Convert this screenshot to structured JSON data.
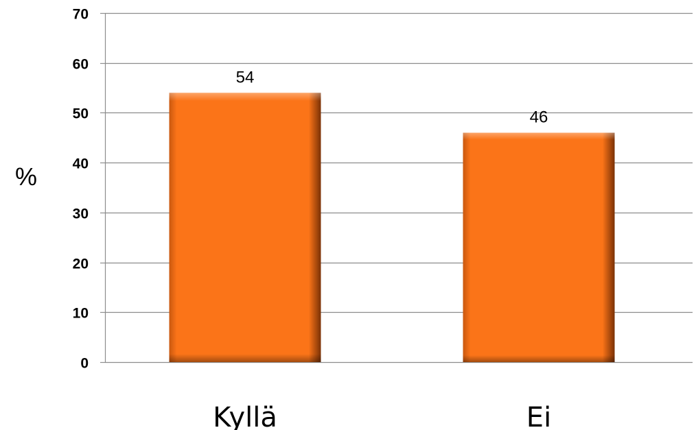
{
  "chart_data": {
    "type": "bar",
    "categories": [
      "Kyllä",
      "Ei"
    ],
    "values": [
      54,
      46
    ],
    "data_labels": [
      "54",
      "46"
    ],
    "title": "",
    "xlabel": "",
    "ylabel": "%",
    "ylim": [
      0,
      70
    ],
    "yticks": [
      0,
      10,
      20,
      30,
      40,
      50,
      60,
      70
    ],
    "grid": true,
    "legend": "none",
    "bar_color": "#fb7418",
    "bar_color_dark": "#b04a0a",
    "bar_color_light": "#ff9a4a"
  }
}
